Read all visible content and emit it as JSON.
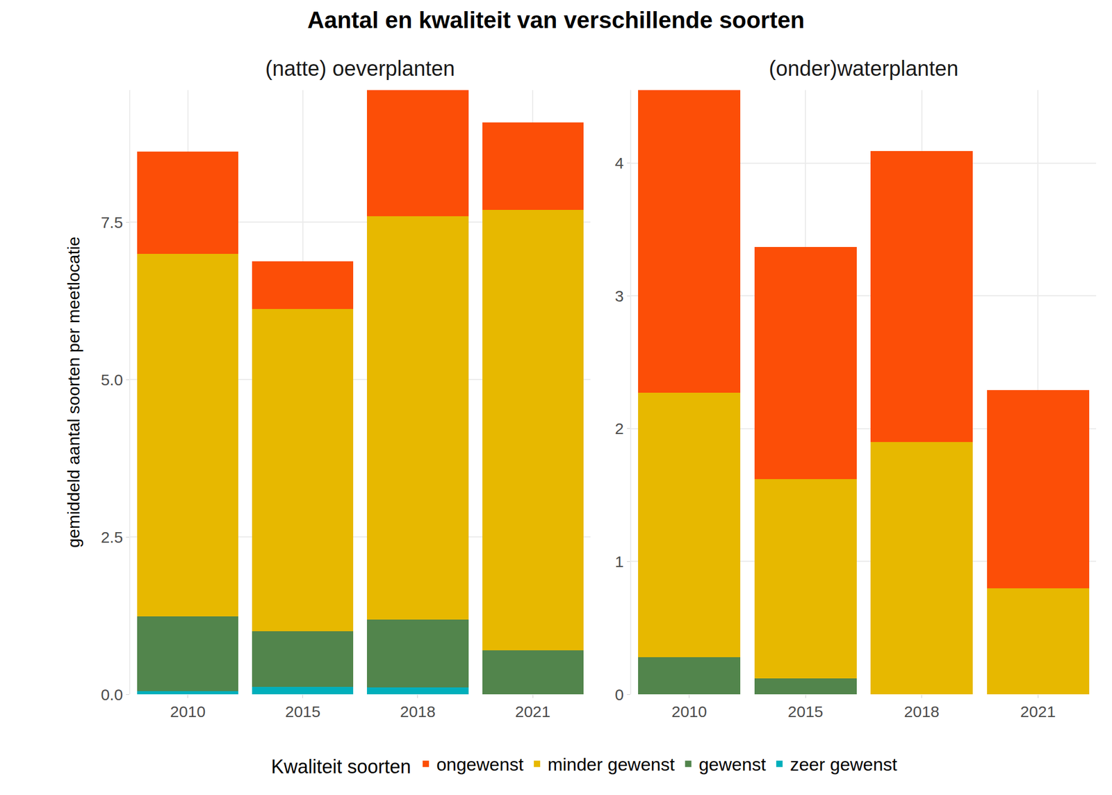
{
  "title": "Aantal en kwaliteit van verschillende soorten",
  "y_label": "gemiddeld aantal soorten per meetlocatie",
  "legend_title": "Kwaliteit soorten",
  "chart_data": [
    {
      "type": "bar",
      "title": "(natte) oeverplanten",
      "stacked": true,
      "grid": true,
      "legend": "bottom",
      "categories": [
        "2010",
        "2015",
        "2018",
        "2021"
      ],
      "ylim": [
        0,
        9.6
      ],
      "yticks": [
        {
          "value": 0,
          "label": "0.0"
        },
        2.5,
        {
          "value": 5,
          "label": "5.0"
        },
        7.5
      ],
      "series": [
        {
          "name": "ongewenst",
          "color": "#FC4E07",
          "values": [
            1.62,
            0.76,
            2.0,
            1.39
          ]
        },
        {
          "name": "minder gewenst",
          "color": "#E7B800",
          "values": [
            5.76,
            5.12,
            6.41,
            7.0
          ]
        },
        {
          "name": "gewenst",
          "color": "#52854C",
          "values": [
            1.19,
            0.88,
            1.08,
            0.7
          ]
        },
        {
          "name": "zeer gewenst",
          "color": "#00AFBB",
          "values": [
            0.05,
            0.12,
            0.11,
            0
          ]
        }
      ]
    },
    {
      "type": "bar",
      "title": "(onder)waterplanten",
      "stacked": true,
      "grid": true,
      "legend": "bottom",
      "categories": [
        "2010",
        "2015",
        "2018",
        "2021"
      ],
      "ylim": [
        0,
        4.55
      ],
      "yticks": [
        0,
        1,
        2,
        3,
        4
      ],
      "series": [
        {
          "name": "ongewenst",
          "color": "#FC4E07",
          "values": [
            2.28,
            1.75,
            2.19,
            1.49
          ]
        },
        {
          "name": "minder gewenst",
          "color": "#E7B800",
          "values": [
            1.99,
            1.5,
            1.9,
            0.8
          ]
        },
        {
          "name": "gewenst",
          "color": "#52854C",
          "values": [
            0.28,
            0.12,
            0,
            0
          ]
        },
        {
          "name": "zeer gewenst",
          "color": "#00AFBB",
          "values": [
            0,
            0,
            0,
            0
          ]
        }
      ]
    }
  ]
}
